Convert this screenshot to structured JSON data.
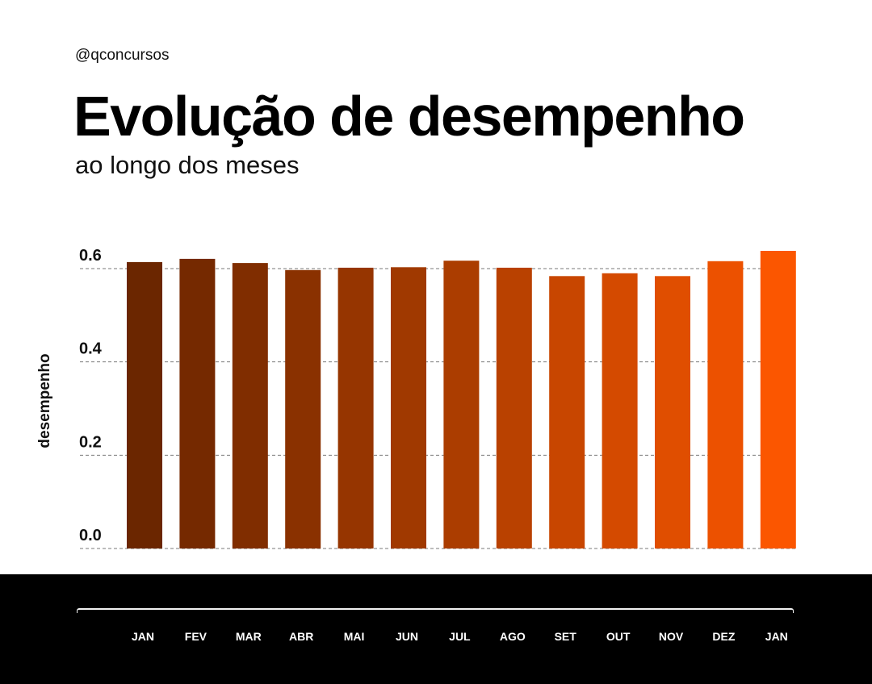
{
  "header": {
    "handle": "@qconcursos",
    "title": "Evolução de desempenho",
    "subtitle": "ao longo dos meses"
  },
  "chart_data": {
    "type": "bar",
    "title": "Evolução de desempenho",
    "subtitle": "ao longo dos meses",
    "xlabel": "",
    "ylabel": "desempenho",
    "categories": [
      "JAN",
      "FEV",
      "MAR",
      "ABR",
      "MAI",
      "JUN",
      "JUL",
      "AGO",
      "SET",
      "OUT",
      "NOV",
      "DEZ",
      "JAN"
    ],
    "values": [
      0.614,
      0.621,
      0.612,
      0.597,
      0.602,
      0.603,
      0.617,
      0.602,
      0.584,
      0.59,
      0.584,
      0.616,
      0.638
    ],
    "colors": [
      "#6b2600",
      "#752900",
      "#802d00",
      "#8a3100",
      "#963500",
      "#a03900",
      "#ab3d00",
      "#b94100",
      "#c84600",
      "#d44a00",
      "#e04e00",
      "#ec5100",
      "#fb5600"
    ],
    "yticks": [
      0.0,
      0.2,
      0.4,
      0.6
    ],
    "ytick_labels": [
      "0.0",
      "0.2",
      "0.4",
      "0.6"
    ],
    "ylim": [
      0,
      0.65
    ],
    "grid": true,
    "grid_style": "dashed",
    "legend": "none"
  }
}
